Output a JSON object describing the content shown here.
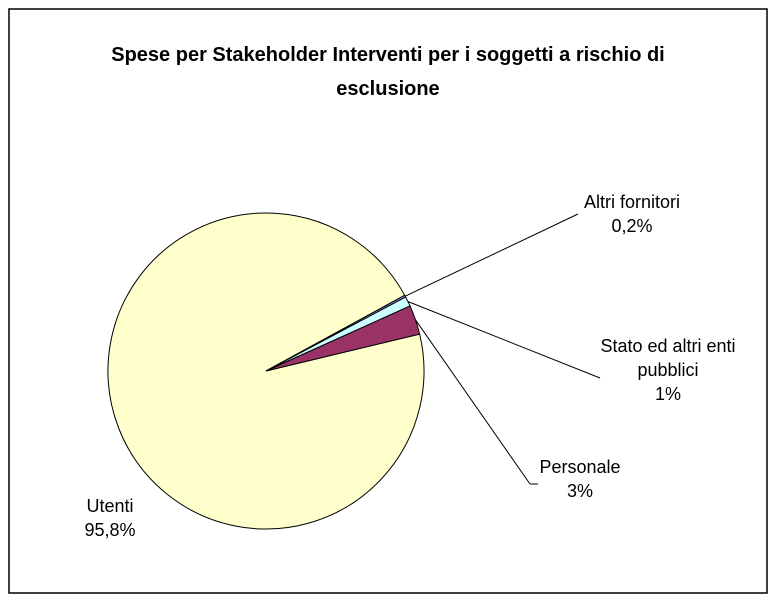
{
  "chart_data": {
    "type": "pie",
    "title": "Spese per Stakeholder Interventi per i soggetti a rischio di esclusione",
    "categories": [
      "Utenti",
      "Altri fornitori",
      "Stato ed altri enti pubblici",
      "Personale"
    ],
    "values": [
      95.8,
      0.2,
      1,
      3
    ],
    "value_labels": [
      "95,8%",
      "0,2%",
      "1%",
      "3%"
    ],
    "colors": [
      "#ffffcc",
      "#9999ff",
      "#ccffff",
      "#993366"
    ]
  }
}
